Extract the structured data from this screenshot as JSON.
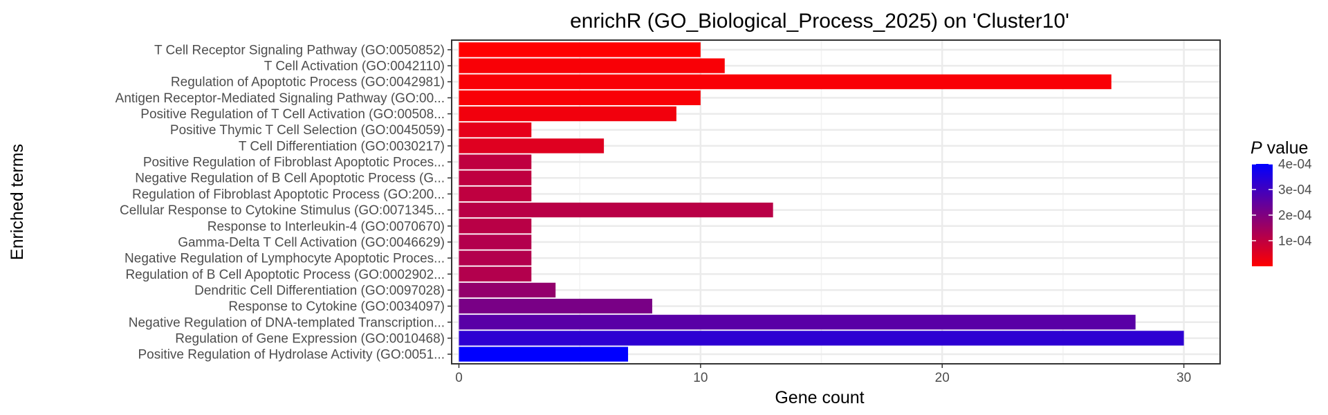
{
  "chart_data": {
    "type": "bar",
    "orientation": "horizontal",
    "title": "enrichR (GO_Biological_Process_2025) on 'Cluster10'",
    "xlabel": "Gene count",
    "ylabel": "Enriched terms",
    "xlim": [
      -0.3,
      31.5
    ],
    "x_ticks": [
      0,
      10,
      20,
      30
    ],
    "grid": true,
    "legend": {
      "title_italic": "P",
      "title_rest": " value",
      "position": "right",
      "range": [
        0,
        0.0004
      ],
      "ticks": [
        {
          "value": 0.0001,
          "label": "1e-04"
        },
        {
          "value": 0.0002,
          "label": "2e-04"
        },
        {
          "value": 0.0003,
          "label": "3e-04"
        },
        {
          "value": 0.0004,
          "label": "4e-04"
        }
      ],
      "color_low": "#ff0000",
      "color_high": "#0000ff"
    },
    "categories": [
      "T Cell Receptor Signaling Pathway (GO:0050852)",
      "T Cell Activation (GO:0042110)",
      "Regulation of Apoptotic Process (GO:0042981)",
      "Antigen Receptor-Mediated Signaling Pathway (GO:00...",
      "Positive Regulation of T Cell Activation (GO:00508...",
      "Positive Thymic T Cell Selection (GO:0045059)",
      "T Cell Differentiation (GO:0030217)",
      "Positive Regulation of Fibroblast Apoptotic Proces...",
      "Negative Regulation of B Cell Apoptotic Process (G...",
      "Regulation of Fibroblast Apoptotic Process (GO:200...",
      "Cellular Response to Cytokine Stimulus (GO:0071345...",
      "Response to Interleukin-4 (GO:0070670)",
      "Gamma-Delta T Cell Activation (GO:0046629)",
      "Negative Regulation of Lymphocyte Apoptotic Proces...",
      "Regulation of B Cell Apoptotic Process (GO:0002902...",
      "Dendritic Cell Differentiation (GO:0097028)",
      "Response to Cytokine (GO:0034097)",
      "Negative Regulation of DNA-templated Transcription...",
      "Regulation of Gene Expression (GO:0010468)",
      "Positive Regulation of Hydrolase Activity (GO:0051..."
    ],
    "values": [
      10,
      11,
      27,
      10,
      9,
      3,
      6,
      3,
      3,
      3,
      13,
      3,
      3,
      3,
      3,
      4,
      8,
      28,
      30,
      7
    ],
    "p_values": [
      0.0,
      1e-05,
      1e-05,
      1e-05,
      2e-05,
      4e-05,
      5e-05,
      0.0001,
      0.0001,
      0.0001,
      0.00011,
      0.00011,
      0.00012,
      0.00012,
      0.00012,
      0.00017,
      0.00021,
      0.00026,
      0.00033,
      0.0004
    ]
  }
}
